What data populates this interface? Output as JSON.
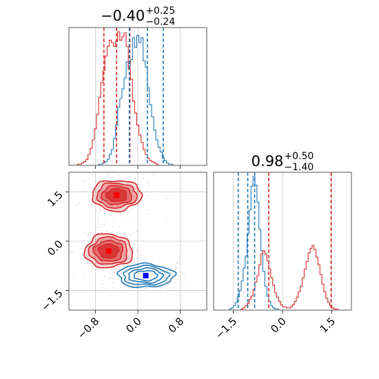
{
  "chart_data": {
    "type": "corner",
    "parameters": [
      {
        "title_main": "−0.40",
        "title_up": "+0.25",
        "title_down": "−0.24"
      },
      {
        "title_main": "0.98",
        "title_up": "+0.50",
        "title_down": "−1.40"
      }
    ],
    "x_param0": {
      "range": [
        -1.3,
        1.3
      ],
      "ticks": [
        -0.8,
        0.0,
        0.8
      ],
      "tick_labels": [
        "−0.8",
        "0.0",
        "0.8"
      ]
    },
    "param1": {
      "range": [
        -2.1,
        2.1
      ],
      "ticks": [
        -1.5,
        0.0,
        1.5
      ],
      "tick_labels": [
        "−1.5",
        "0.0",
        "1.5"
      ]
    },
    "grid": true,
    "series": [
      {
        "color": "#1f77b4",
        "hist0": {
          "bin_start": -1.3,
          "bin_width": 0.04,
          "counts": [
            0,
            0,
            0,
            0,
            0,
            0,
            0,
            0,
            0,
            0,
            0,
            0,
            0,
            0,
            1,
            1,
            2,
            3,
            5,
            9,
            13,
            22,
            33,
            48,
            55,
            63,
            72,
            85,
            82,
            87,
            105,
            97,
            107,
            101,
            105,
            86,
            81,
            64,
            50,
            40,
            29,
            21,
            15,
            11,
            6,
            4,
            2,
            1,
            1,
            0,
            0,
            0,
            0,
            0,
            0,
            0,
            0,
            0,
            0,
            0,
            0,
            0,
            0,
            0,
            0
          ],
          "quantiles": [
            -0.16,
            0.18,
            0.48
          ]
        },
        "hist1": {
          "bin_start": -2.1,
          "bin_width": 0.06,
          "counts": [
            0,
            0,
            0,
            0,
            0,
            0,
            0,
            0,
            1,
            2,
            4,
            7,
            12,
            18,
            27,
            39,
            50,
            71,
            93,
            115,
            124,
            116,
            100,
            75,
            55,
            36,
            22,
            13,
            8,
            4,
            2,
            1,
            1,
            0,
            0,
            0,
            0,
            0,
            0,
            0,
            0,
            0,
            0,
            0,
            0,
            0,
            0,
            0,
            0,
            0,
            0,
            0,
            0,
            0,
            0,
            0,
            0,
            0,
            0,
            0,
            0,
            0,
            0,
            0,
            0,
            0,
            0,
            0,
            0,
            0
          ],
          "quantiles": [
            -1.35,
            -1.06,
            -0.85
          ]
        },
        "blobs": [
          {
            "cx": 0.15,
            "cy": -1.05,
            "sx": 0.34,
            "sy": 0.23,
            "weight": 1.0
          }
        ],
        "marker": [
          0.15,
          -1.05
        ]
      },
      {
        "color": "#d62728",
        "hist0": {
          "bin_start": -1.3,
          "bin_width": 0.04,
          "counts": [
            0,
            0,
            0,
            0,
            1,
            1,
            2,
            3,
            5,
            9,
            14,
            21,
            30,
            42,
            56,
            68,
            78,
            90,
            98,
            103,
            101,
            98,
            102,
            110,
            103,
            106,
            109,
            98,
            79,
            71,
            53,
            43,
            33,
            25,
            19,
            13,
            9,
            6,
            4,
            3,
            2,
            1,
            0,
            0,
            0,
            0,
            0,
            0,
            0,
            0,
            0,
            0,
            0,
            0,
            0,
            0,
            0,
            0,
            0,
            0,
            0,
            0,
            0,
            0,
            0
          ],
          "quantiles": [
            -0.64,
            -0.4,
            -0.15
          ]
        },
        "hist1": {
          "bin_start": -2.1,
          "bin_width": 0.06,
          "counts": [
            0,
            0,
            0,
            0,
            0,
            0,
            0,
            0,
            0,
            0,
            0,
            0,
            0,
            0,
            1,
            2,
            4,
            6,
            10,
            13,
            19,
            26,
            32,
            42,
            52,
            55,
            52,
            46,
            38,
            30,
            23,
            16,
            12,
            8,
            5,
            3,
            3,
            2,
            2,
            3,
            5,
            8,
            12,
            17,
            22,
            30,
            38,
            45,
            53,
            57,
            60,
            56,
            49,
            42,
            33,
            24,
            17,
            11,
            7,
            4,
            2,
            1,
            1,
            0,
            0,
            0,
            0,
            0,
            0,
            0
          ],
          "quantiles": [
            -0.42,
            1.48
          ]
        },
        "blobs": [
          {
            "cx": -0.4,
            "cy": 1.4,
            "sx": 0.3,
            "sy": 0.3,
            "weight": 1.0
          },
          {
            "cx": -0.55,
            "cy": -0.3,
            "sx": 0.29,
            "sy": 0.33,
            "weight": 1.0
          }
        ],
        "markers": [
          [
            -0.4,
            1.4
          ],
          [
            -0.55,
            -0.3
          ]
        ]
      }
    ]
  }
}
